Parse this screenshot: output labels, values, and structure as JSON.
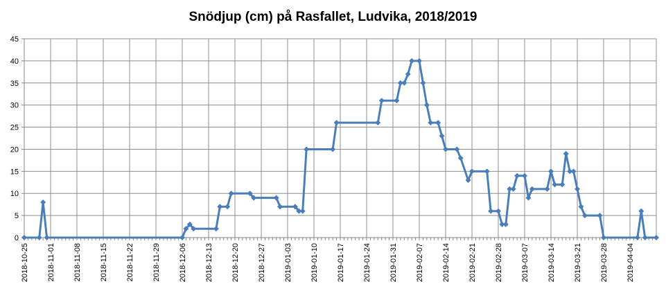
{
  "chart_data": {
    "type": "line",
    "title": "Snödjup (cm) på Rasfallet, Ludvika, 2018/2019",
    "xlabel": "",
    "ylabel": "",
    "ylim": [
      0,
      45
    ],
    "yticks": [
      0,
      5,
      10,
      15,
      20,
      25,
      30,
      35,
      40,
      45
    ],
    "xlim": [
      "2018-10-25",
      "2019-04-11"
    ],
    "xticks": [
      "2018-10-25",
      "2018-11-01",
      "2018-11-08",
      "2018-11-15",
      "2018-11-22",
      "2018-11-29",
      "2018-12-06",
      "2018-12-13",
      "2018-12-20",
      "2018-12-27",
      "2019-01-03",
      "2019-01-10",
      "2019-01-17",
      "2019-01-24",
      "2019-01-31",
      "2019-02-07",
      "2019-02-14",
      "2019-02-21",
      "2019-02-28",
      "2019-03-07",
      "2019-03-14",
      "2019-03-21",
      "2019-03-28",
      "2019-04-04"
    ],
    "grid": true,
    "legend": "none",
    "series": [
      {
        "color": "#4a7ebb",
        "points": [
          [
            "2018-10-25",
            0
          ],
          [
            "2018-10-29",
            0
          ],
          [
            "2018-10-30",
            8
          ],
          [
            "2018-10-31",
            0
          ],
          [
            "2018-12-06",
            0
          ],
          [
            "2018-12-07",
            2
          ],
          [
            "2018-12-08",
            3
          ],
          [
            "2018-12-09",
            2
          ],
          [
            "2018-12-15",
            2
          ],
          [
            "2018-12-16",
            7
          ],
          [
            "2018-12-18",
            7
          ],
          [
            "2018-12-19",
            10
          ],
          [
            "2018-12-24",
            10
          ],
          [
            "2018-12-25",
            9
          ],
          [
            "2018-12-31",
            9
          ],
          [
            "2019-01-01",
            7
          ],
          [
            "2019-01-05",
            7
          ],
          [
            "2019-01-06",
            6
          ],
          [
            "2019-01-07",
            6
          ],
          [
            "2019-01-08",
            20
          ],
          [
            "2019-01-15",
            20
          ],
          [
            "2019-01-16",
            26
          ],
          [
            "2019-01-27",
            26
          ],
          [
            "2019-01-28",
            31
          ],
          [
            "2019-02-01",
            31
          ],
          [
            "2019-02-02",
            35
          ],
          [
            "2019-02-03",
            35
          ],
          [
            "2019-02-04",
            37
          ],
          [
            "2019-02-05",
            40
          ],
          [
            "2019-02-07",
            40
          ],
          [
            "2019-02-08",
            35
          ],
          [
            "2019-02-09",
            30
          ],
          [
            "2019-02-10",
            26
          ],
          [
            "2019-02-12",
            26
          ],
          [
            "2019-02-13",
            23
          ],
          [
            "2019-02-14",
            20
          ],
          [
            "2019-02-17",
            20
          ],
          [
            "2019-02-18",
            18
          ],
          [
            "2019-02-20",
            13
          ],
          [
            "2019-02-21",
            15
          ],
          [
            "2019-02-25",
            15
          ],
          [
            "2019-02-26",
            6
          ],
          [
            "2019-02-28",
            6
          ],
          [
            "2019-03-01",
            3
          ],
          [
            "2019-03-02",
            3
          ],
          [
            "2019-03-03",
            11
          ],
          [
            "2019-03-04",
            11
          ],
          [
            "2019-03-05",
            14
          ],
          [
            "2019-03-07",
            14
          ],
          [
            "2019-03-08",
            9
          ],
          [
            "2019-03-09",
            11
          ],
          [
            "2019-03-13",
            11
          ],
          [
            "2019-03-14",
            15
          ],
          [
            "2019-03-15",
            12
          ],
          [
            "2019-03-17",
            12
          ],
          [
            "2019-03-18",
            19
          ],
          [
            "2019-03-19",
            15
          ],
          [
            "2019-03-20",
            15
          ],
          [
            "2019-03-21",
            11
          ],
          [
            "2019-03-22",
            7
          ],
          [
            "2019-03-23",
            5
          ],
          [
            "2019-03-27",
            5
          ],
          [
            "2019-03-28",
            0
          ],
          [
            "2019-04-06",
            0
          ],
          [
            "2019-04-07",
            6
          ],
          [
            "2019-04-08",
            0
          ],
          [
            "2019-04-11",
            0
          ]
        ]
      }
    ]
  }
}
